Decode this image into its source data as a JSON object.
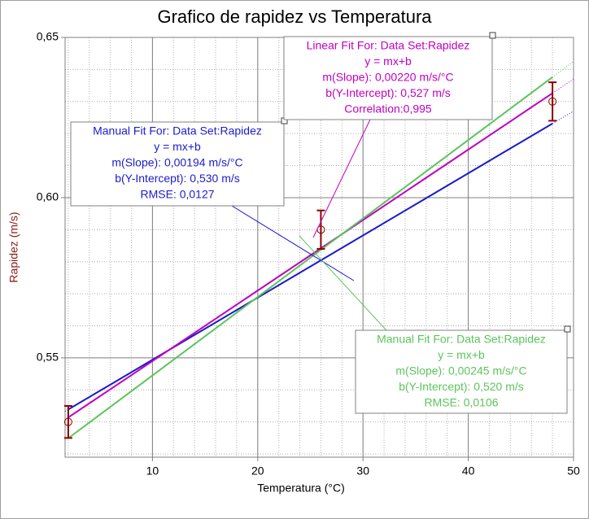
{
  "chart_data": {
    "type": "scatter",
    "title": "Grafico de rapidez vs Temperatura",
    "x_label": "Temperatura (°C)",
    "y_label": "Rapidez (m/s)",
    "xlim": [
      1.7,
      50
    ],
    "ylim": [
      0.519,
      0.65
    ],
    "xticks": [
      10,
      20,
      30,
      40,
      50
    ],
    "yticks": [
      {
        "value": 0.55,
        "label": "0,55"
      },
      {
        "value": 0.6,
        "label": "0,60"
      },
      {
        "value": 0.65,
        "label": "0,65"
      }
    ],
    "grid": true,
    "minor_grid": true,
    "series": [
      {
        "color": "#8b0000",
        "x": [
          2,
          26,
          48
        ],
        "values": [
          0.53,
          0.59,
          0.63
        ],
        "errors": [
          0.005,
          0.006,
          0.006
        ]
      }
    ],
    "fits": [
      {
        "color": "#1c1ccc",
        "slope": 0.00194,
        "intercept": 0.53,
        "lines": [
          "Manual Fit For:  Data Set:Rapidez",
          "y = mx+b",
          "m(Slope): 0,00194 m/s/°C",
          "b(Y-Intercept): 0,530 m/s",
          "RMSE: 0,0127"
        ]
      },
      {
        "color": "#c000c0",
        "slope": 0.0022,
        "intercept": 0.527,
        "lines": [
          "Linear Fit For:  Data Set:Rapidez",
          "y = mx+b",
          "m(Slope): 0,00220 m/s/°C",
          "b(Y-Intercept): 0,527 m/s",
          "Correlation:0,995"
        ]
      },
      {
        "color": "#5cc45c",
        "slope": 0.00245,
        "intercept": 0.52,
        "lines": [
          "Manual Fit For:  Data Set:Rapidez",
          "y = mx+b",
          "m(Slope): 0,00245 m/s/°C",
          "b(Y-Intercept): 0,520 m/s",
          "RMSE: 0,0106"
        ]
      }
    ]
  }
}
